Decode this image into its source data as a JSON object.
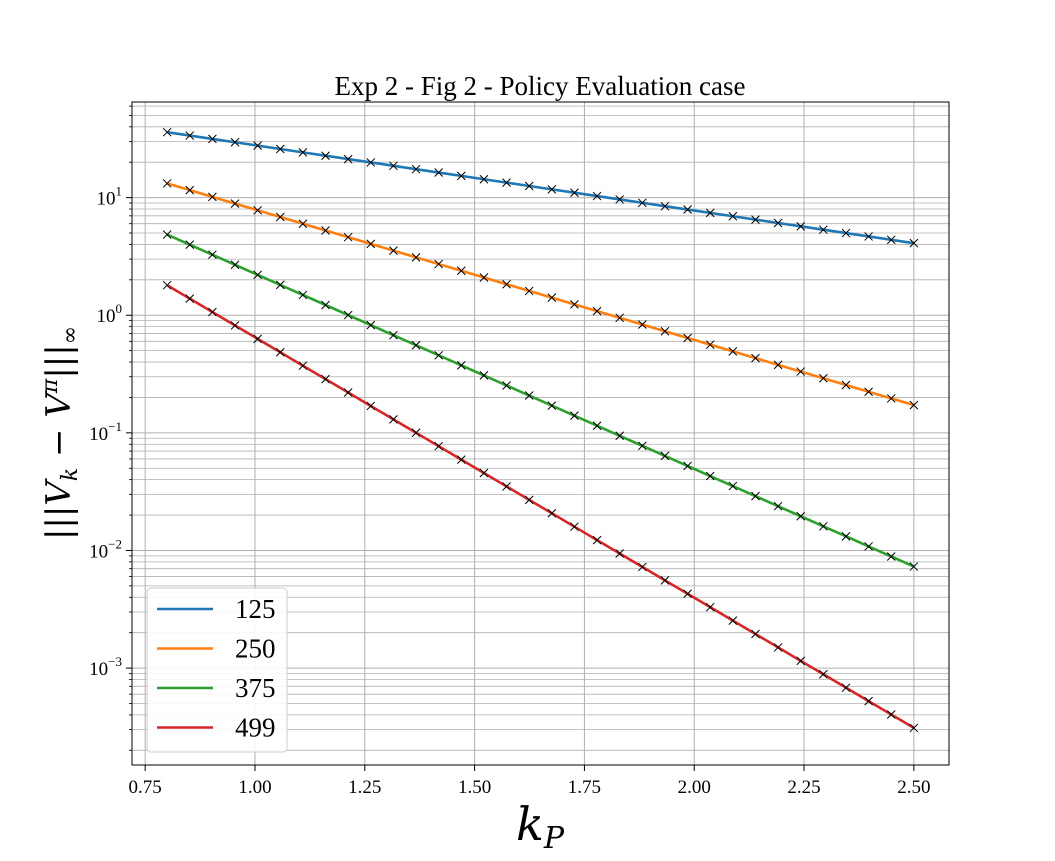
{
  "chart_data": {
    "type": "line",
    "title": "Exp 2 - Fig 2 - Policy Evaluation case",
    "xlabel": "k_P",
    "ylabel": "|||V_k − V^π|||_∞",
    "xlim": [
      0.72,
      2.58
    ],
    "ylim": [
      0.00015,
      65
    ],
    "yscale": "log",
    "grid": true,
    "legend_position": "lower-left",
    "x_ticks": [
      0.75,
      1.0,
      1.25,
      1.5,
      1.75,
      2.0,
      2.25,
      2.5
    ],
    "x_tick_labels": [
      "0.75",
      "1.00",
      "1.25",
      "1.50",
      "1.75",
      "2.00",
      "2.25",
      "2.50"
    ],
    "y_ticks": [
      0.001,
      0.01,
      0.1,
      1,
      10
    ],
    "y_tick_labels": [
      {
        "base": "10",
        "exp": "−3"
      },
      {
        "base": "10",
        "exp": "−2"
      },
      {
        "base": "10",
        "exp": "−1"
      },
      {
        "base": "10",
        "exp": "0"
      },
      {
        "base": "10",
        "exp": "1"
      }
    ],
    "x_range": {
      "start": 0.8,
      "end": 2.5,
      "count": 34
    },
    "marker": "x",
    "marker_color": "#000000",
    "series": [
      {
        "name": "125",
        "color": "#1f77b4",
        "y_start": 36,
        "y_end": 4.1
      },
      {
        "name": "250",
        "color": "#ff7f0e",
        "y_start": 13.2,
        "y_end": 0.172
      },
      {
        "name": "375",
        "color": "#2ca02c",
        "y_start": 4.85,
        "y_end": 0.0073
      },
      {
        "name": "499",
        "color": "#d62728",
        "y_start": 1.8,
        "y_end": 0.00031
      }
    ]
  }
}
